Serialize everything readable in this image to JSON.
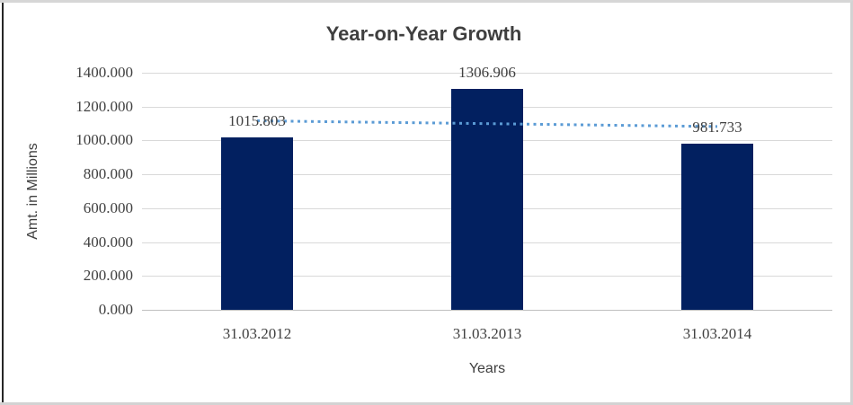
{
  "window": {
    "background": "#ffffff",
    "outer_border_color": "#d6d6d6",
    "left_cell_border_color": "#262626"
  },
  "chart_data": {
    "type": "bar",
    "title": "Year-on-Year Growth",
    "xlabel": "Years",
    "ylabel": "Amt. in Millions",
    "categories": [
      "31.03.2012",
      "31.03.2013",
      "31.03.2014"
    ],
    "values": [
      1015.803,
      1306.906,
      981.733
    ],
    "value_labels": [
      "1015.803",
      "1306.906",
      "981.733"
    ],
    "yticks": [
      "0.000",
      "200.000",
      "400.000",
      "600.000",
      "800.000",
      "1000.000",
      "1200.000",
      "1400.000"
    ],
    "ylim": [
      0,
      1400
    ],
    "grid": true,
    "legend": "none",
    "bar_color": "#022060",
    "trendline": {
      "type": "linear",
      "style": "dotted",
      "color": "#5b9bd5"
    },
    "gridline_color": "#d9d9d9",
    "axis_line_color": "#bfbfbf",
    "text_color": "#404040"
  }
}
